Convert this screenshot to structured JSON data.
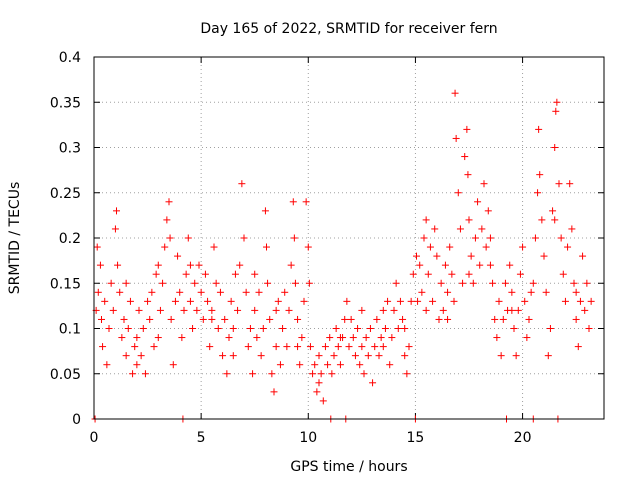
{
  "chart_data": {
    "type": "scatter",
    "title": "Day 165 of 2022, SRMTID for receiver fern",
    "xlabel": "GPS time / hours",
    "ylabel": "SRMTID / TECUs",
    "xlim": [
      0,
      23.8
    ],
    "ylim": [
      0,
      0.4
    ],
    "xticks": [
      0,
      5,
      10,
      15,
      20
    ],
    "xtick_labels": [
      "0",
      "5",
      "10",
      "15",
      "20"
    ],
    "yticks": [
      0,
      0.05,
      0.1,
      0.15,
      0.2,
      0.25,
      0.3,
      0.35,
      0.4
    ],
    "ytick_labels": [
      "0",
      "0.05",
      "0.1",
      "0.15",
      "0.2",
      "0.25",
      "0.3",
      "0.35",
      "0.4"
    ],
    "grid": true,
    "marker": "+",
    "color": "#ff0000",
    "series": [
      {
        "name": "SRMTID",
        "points": [
          [
            0.05,
            0.0
          ],
          [
            0.1,
            0.12
          ],
          [
            0.15,
            0.19
          ],
          [
            0.2,
            0.14
          ],
          [
            0.3,
            0.17
          ],
          [
            0.35,
            0.11
          ],
          [
            0.4,
            0.08
          ],
          [
            0.5,
            0.13
          ],
          [
            0.6,
            0.06
          ],
          [
            0.7,
            0.1
          ],
          [
            0.8,
            0.15
          ],
          [
            0.9,
            0.12
          ],
          [
            1.0,
            0.21
          ],
          [
            1.05,
            0.23
          ],
          [
            1.1,
            0.17
          ],
          [
            1.2,
            0.14
          ],
          [
            1.3,
            0.09
          ],
          [
            1.4,
            0.11
          ],
          [
            1.5,
            0.07
          ],
          [
            1.6,
            0.1
          ],
          [
            1.7,
            0.13
          ],
          [
            1.8,
            0.05
          ],
          [
            1.9,
            0.08
          ],
          [
            2.0,
            0.09
          ],
          [
            2.1,
            0.12
          ],
          [
            2.2,
            0.07
          ],
          [
            2.3,
            0.1
          ],
          [
            2.4,
            0.05
          ],
          [
            2.5,
            0.13
          ],
          [
            2.6,
            0.11
          ],
          [
            2.7,
            0.14
          ],
          [
            2.8,
            0.08
          ],
          [
            2.9,
            0.16
          ],
          [
            3.0,
            0.17
          ],
          [
            3.1,
            0.12
          ],
          [
            3.2,
            0.15
          ],
          [
            3.3,
            0.19
          ],
          [
            3.4,
            0.22
          ],
          [
            3.5,
            0.24
          ],
          [
            3.55,
            0.2
          ],
          [
            3.6,
            0.11
          ],
          [
            3.7,
            0.06
          ],
          [
            3.8,
            0.13
          ],
          [
            3.9,
            0.18
          ],
          [
            4.0,
            0.14
          ],
          [
            4.1,
            0.09
          ],
          [
            4.15,
            0.0
          ],
          [
            4.2,
            0.12
          ],
          [
            4.3,
            0.16
          ],
          [
            4.4,
            0.2
          ],
          [
            4.5,
            0.13
          ],
          [
            4.6,
            0.1
          ],
          [
            4.7,
            0.15
          ],
          [
            4.8,
            0.12
          ],
          [
            4.9,
            0.17
          ],
          [
            5.0,
            0.14
          ],
          [
            5.1,
            0.11
          ],
          [
            5.2,
            0.16
          ],
          [
            5.3,
            0.13
          ],
          [
            5.4,
            0.08
          ],
          [
            5.5,
            0.12
          ],
          [
            5.6,
            0.19
          ],
          [
            5.7,
            0.15
          ],
          [
            5.8,
            0.1
          ],
          [
            5.9,
            0.14
          ],
          [
            6.0,
            0.07
          ],
          [
            6.1,
            0.11
          ],
          [
            6.2,
            0.05
          ],
          [
            6.3,
            0.09
          ],
          [
            6.4,
            0.13
          ],
          [
            6.5,
            0.1
          ],
          [
            6.6,
            0.16
          ],
          [
            6.7,
            0.12
          ],
          [
            6.8,
            0.17
          ],
          [
            6.9,
            0.26
          ],
          [
            7.0,
            0.2
          ],
          [
            7.1,
            0.14
          ],
          [
            7.2,
            0.08
          ],
          [
            7.3,
            0.1
          ],
          [
            7.4,
            0.05
          ],
          [
            7.5,
            0.12
          ],
          [
            7.6,
            0.09
          ],
          [
            7.7,
            0.14
          ],
          [
            7.8,
            0.07
          ],
          [
            7.9,
            0.1
          ],
          [
            8.0,
            0.23
          ],
          [
            8.05,
            0.19
          ],
          [
            8.1,
            0.15
          ],
          [
            8.2,
            0.11
          ],
          [
            8.3,
            0.05
          ],
          [
            8.4,
            0.03
          ],
          [
            8.5,
            0.08
          ],
          [
            8.6,
            0.13
          ],
          [
            8.7,
            0.06
          ],
          [
            8.8,
            0.1
          ],
          [
            8.9,
            0.14
          ],
          [
            9.0,
            0.08
          ],
          [
            9.1,
            0.12
          ],
          [
            9.2,
            0.17
          ],
          [
            9.3,
            0.24
          ],
          [
            9.35,
            0.2
          ],
          [
            9.4,
            0.15
          ],
          [
            9.5,
            0.11
          ],
          [
            9.6,
            0.06
          ],
          [
            9.7,
            0.09
          ],
          [
            9.8,
            0.13
          ],
          [
            9.9,
            0.24
          ],
          [
            10.0,
            0.19
          ],
          [
            10.05,
            0.15
          ],
          [
            10.1,
            0.08
          ],
          [
            10.2,
            0.05
          ],
          [
            10.3,
            0.06
          ],
          [
            10.4,
            0.03
          ],
          [
            10.5,
            0.04
          ],
          [
            10.6,
            0.05
          ],
          [
            10.7,
            0.02
          ],
          [
            10.8,
            0.08
          ],
          [
            10.9,
            0.06
          ],
          [
            11.0,
            0.09
          ],
          [
            11.05,
            0.0
          ],
          [
            11.1,
            0.05
          ],
          [
            11.2,
            0.07
          ],
          [
            11.3,
            0.1
          ],
          [
            11.4,
            0.08
          ],
          [
            11.5,
            0.06
          ],
          [
            11.6,
            0.09
          ],
          [
            11.7,
            0.11
          ],
          [
            11.75,
            0.0
          ],
          [
            11.8,
            0.13
          ],
          [
            11.9,
            0.08
          ],
          [
            12.0,
            0.11
          ],
          [
            12.1,
            0.09
          ],
          [
            12.2,
            0.07
          ],
          [
            12.3,
            0.1
          ],
          [
            12.4,
            0.06
          ],
          [
            12.5,
            0.08
          ],
          [
            12.6,
            0.05
          ],
          [
            12.7,
            0.09
          ],
          [
            12.8,
            0.07
          ],
          [
            12.9,
            0.1
          ],
          [
            13.0,
            0.04
          ],
          [
            13.1,
            0.08
          ],
          [
            13.2,
            0.11
          ],
          [
            13.3,
            0.07
          ],
          [
            13.4,
            0.09
          ],
          [
            13.5,
            0.12
          ],
          [
            13.6,
            0.1
          ],
          [
            13.7,
            0.13
          ],
          [
            13.8,
            0.06
          ],
          [
            13.9,
            0.09
          ],
          [
            14.0,
            0.12
          ],
          [
            14.1,
            0.15
          ],
          [
            14.2,
            0.1
          ],
          [
            14.3,
            0.13
          ],
          [
            14.4,
            0.11
          ],
          [
            14.5,
            0.07
          ],
          [
            14.6,
            0.05
          ],
          [
            14.7,
            0.08
          ],
          [
            14.8,
            0.13
          ],
          [
            14.9,
            0.16
          ],
          [
            15.0,
            0.0
          ],
          [
            15.05,
            0.18
          ],
          [
            15.1,
            0.13
          ],
          [
            15.2,
            0.17
          ],
          [
            15.3,
            0.14
          ],
          [
            15.4,
            0.2
          ],
          [
            15.5,
            0.22
          ],
          [
            15.6,
            0.16
          ],
          [
            15.7,
            0.19
          ],
          [
            15.8,
            0.13
          ],
          [
            15.9,
            0.21
          ],
          [
            16.0,
            0.18
          ],
          [
            16.1,
            0.11
          ],
          [
            16.2,
            0.15
          ],
          [
            16.3,
            0.12
          ],
          [
            16.4,
            0.17
          ],
          [
            16.5,
            0.14
          ],
          [
            16.6,
            0.19
          ],
          [
            16.7,
            0.16
          ],
          [
            16.8,
            0.13
          ],
          [
            16.85,
            0.36
          ],
          [
            16.9,
            0.31
          ],
          [
            17.0,
            0.25
          ],
          [
            17.1,
            0.21
          ],
          [
            17.2,
            0.15
          ],
          [
            17.3,
            0.29
          ],
          [
            17.4,
            0.32
          ],
          [
            17.45,
            0.27
          ],
          [
            17.5,
            0.22
          ],
          [
            17.6,
            0.18
          ],
          [
            17.7,
            0.15
          ],
          [
            17.8,
            0.2
          ],
          [
            17.9,
            0.24
          ],
          [
            18.0,
            0.17
          ],
          [
            18.1,
            0.21
          ],
          [
            18.2,
            0.26
          ],
          [
            18.3,
            0.19
          ],
          [
            18.4,
            0.23
          ],
          [
            18.5,
            0.2
          ],
          [
            18.6,
            0.15
          ],
          [
            18.7,
            0.11
          ],
          [
            18.8,
            0.09
          ],
          [
            18.9,
            0.13
          ],
          [
            19.0,
            0.07
          ],
          [
            19.1,
            0.11
          ],
          [
            19.2,
            0.15
          ],
          [
            19.25,
            0.0
          ],
          [
            19.3,
            0.12
          ],
          [
            19.4,
            0.17
          ],
          [
            19.5,
            0.14
          ],
          [
            19.6,
            0.1
          ],
          [
            19.7,
            0.07
          ],
          [
            19.8,
            0.12
          ],
          [
            19.9,
            0.16
          ],
          [
            20.0,
            0.19
          ],
          [
            20.1,
            0.13
          ],
          [
            20.2,
            0.09
          ],
          [
            20.3,
            0.11
          ],
          [
            20.4,
            0.14
          ],
          [
            20.5,
            0.0
          ],
          [
            20.6,
            0.2
          ],
          [
            20.7,
            0.25
          ],
          [
            20.75,
            0.32
          ],
          [
            20.8,
            0.27
          ],
          [
            20.9,
            0.22
          ],
          [
            21.0,
            0.18
          ],
          [
            21.1,
            0.14
          ],
          [
            21.2,
            0.07
          ],
          [
            21.3,
            0.1
          ],
          [
            21.4,
            0.23
          ],
          [
            21.5,
            0.3
          ],
          [
            21.55,
            0.34
          ],
          [
            21.6,
            0.35
          ],
          [
            21.65,
            0.0
          ],
          [
            21.7,
            0.26
          ],
          [
            21.8,
            0.2
          ],
          [
            21.9,
            0.16
          ],
          [
            22.0,
            0.13
          ],
          [
            22.1,
            0.19
          ],
          [
            22.2,
            0.26
          ],
          [
            22.3,
            0.21
          ],
          [
            22.4,
            0.15
          ],
          [
            22.5,
            0.11
          ],
          [
            22.6,
            0.08
          ],
          [
            22.7,
            0.13
          ],
          [
            22.8,
            0.18
          ],
          [
            22.9,
            0.12
          ],
          [
            23.0,
            0.15
          ],
          [
            23.1,
            0.1
          ],
          [
            23.2,
            0.13
          ],
          [
            1.5,
            0.15
          ],
          [
            2.0,
            0.06
          ],
          [
            3.0,
            0.09
          ],
          [
            4.5,
            0.17
          ],
          [
            5.5,
            0.11
          ],
          [
            6.5,
            0.07
          ],
          [
            7.5,
            0.16
          ],
          [
            8.5,
            0.12
          ],
          [
            9.5,
            0.08
          ],
          [
            10.5,
            0.07
          ],
          [
            11.5,
            0.09
          ],
          [
            12.5,
            0.12
          ],
          [
            13.5,
            0.08
          ],
          [
            14.5,
            0.1
          ],
          [
            15.5,
            0.12
          ],
          [
            16.5,
            0.11
          ],
          [
            17.5,
            0.16
          ],
          [
            18.5,
            0.17
          ],
          [
            19.5,
            0.12
          ],
          [
            20.5,
            0.15
          ],
          [
            21.5,
            0.22
          ],
          [
            22.5,
            0.14
          ]
        ]
      }
    ]
  }
}
